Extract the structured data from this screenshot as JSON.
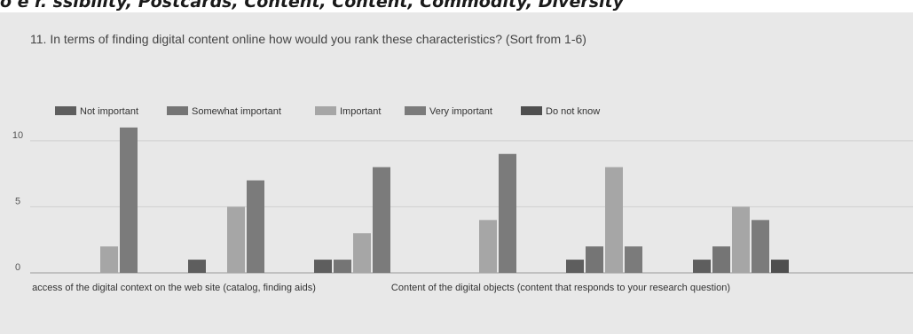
{
  "header_fragment": "o e  r.   ssibility, Postcards, Content, Content, Commodity, Diversity",
  "question": "11. In terms of finding digital content online how would you rank these characteristics? (Sort from 1-6)",
  "colors": {
    "panel_bg": "#e8e8e8",
    "grid": "#cfcfcf",
    "baseline": "#9a9a9a"
  },
  "chart_data": {
    "type": "bar",
    "title": "11. In terms of finding digital content online how would you rank these characteristics? (Sort from 1-6)",
    "categories": [
      "access of the digital context on the web site (catalog, finding aids)",
      "",
      "Content of the digital objects (content that responds to your research question)",
      "",
      "",
      ""
    ],
    "series": [
      {
        "name": "Not important",
        "color": "#5e5e5e",
        "values": [
          0,
          1,
          1,
          0,
          1,
          1
        ]
      },
      {
        "name": "Somewhat important",
        "color": "#757575",
        "values": [
          0,
          0,
          1,
          0,
          2,
          2
        ]
      },
      {
        "name": "Important",
        "color": "#a6a6a6",
        "values": [
          2,
          5,
          3,
          4,
          8,
          5
        ]
      },
      {
        "name": "Very important",
        "color": "#7b7b7b",
        "values": [
          11,
          7,
          8,
          9,
          2,
          4
        ]
      },
      {
        "name": "Do not know",
        "color": "#4f4f4f",
        "values": [
          0,
          0,
          0,
          0,
          0,
          1
        ]
      }
    ],
    "y_ticks": [
      0,
      5,
      10
    ],
    "ylim": [
      0,
      12
    ],
    "grid": true,
    "legend_position": "top-left"
  }
}
